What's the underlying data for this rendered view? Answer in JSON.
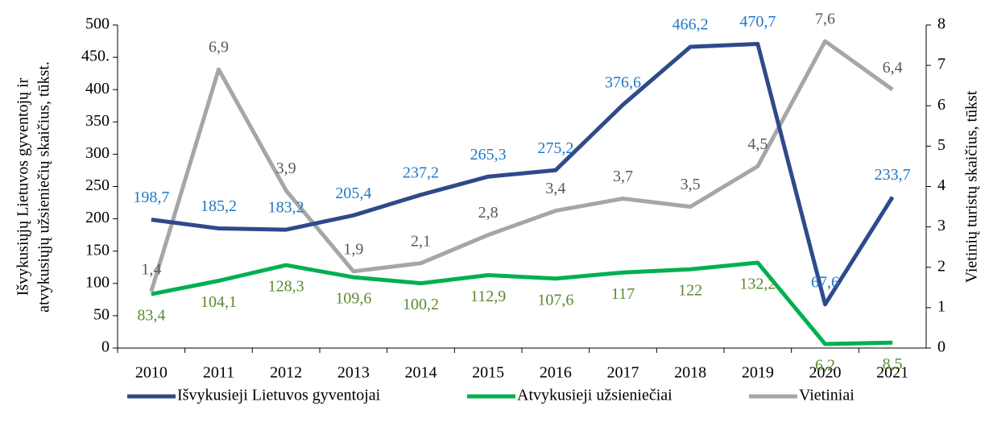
{
  "chart_data": {
    "type": "line",
    "categories": [
      "2010",
      "2011",
      "2012",
      "2013",
      "2014",
      "2015",
      "2016",
      "2017",
      "2018",
      "2019",
      "2020",
      "2021"
    ],
    "series": [
      {
        "name": "Išvykusieji Lietuvos gyventojai",
        "color": "#2e4a8b",
        "label_color": "#1f78c8",
        "values": [
          198.7,
          185.2,
          183.2,
          205.4,
          237.2,
          265.3,
          275.2,
          376.6,
          466.2,
          470.7,
          67.6,
          233.7
        ],
        "value_labels": [
          "198,7",
          "185,2",
          "183,2",
          "205,4",
          "237,2",
          "265,3",
          "275,2",
          "376,6",
          "466,2",
          "470,7",
          "67,6",
          "233,7"
        ]
      },
      {
        "name": "Atvykusieji užsieniečiai",
        "color": "#00b050",
        "label_color": "#5a8a2e",
        "values": [
          83.4,
          104.1,
          128.3,
          109.6,
          100.2,
          112.9,
          107.6,
          117,
          122,
          132.2,
          6.2,
          8.5
        ],
        "value_labels": [
          "83,4",
          "104,1",
          "128,3",
          "109,6",
          "100,2",
          "112,9",
          "107,6",
          "117",
          "122",
          "132,2",
          "6,2",
          "8,5"
        ]
      },
      {
        "name": "Vietiniai",
        "color": "#a6a6a6",
        "label_color": "#595959",
        "axis": "y2",
        "values": [
          1.4,
          6.9,
          3.9,
          1.9,
          2.1,
          2.8,
          3.4,
          3.7,
          3.5,
          4.5,
          7.6,
          6.4
        ],
        "value_labels": [
          "1,4",
          "6,9",
          "3,9",
          "1,9",
          "2,1",
          "2,8",
          "3,4",
          "3,7",
          "3,5",
          "4,5",
          "7,6",
          "6,4"
        ]
      }
    ],
    "ylabel": [
      "Išvykusiųjų Lietuvos gyventojų ir",
      "atvykusiųjų užsieniečių skaičius, tūkst."
    ],
    "y2label": "Vietinių turistų skaičius, tūkst",
    "ylim": [
      0,
      500
    ],
    "yticks": [
      0,
      50,
      100,
      150,
      200,
      250,
      300,
      350,
      400,
      {
        "value": 450,
        "label": "450."
      },
      500
    ],
    "y2lim": [
      0,
      8
    ],
    "y2ticks": [
      0,
      1,
      2,
      3,
      4,
      5,
      6,
      7,
      8
    ],
    "legend": "bottom"
  }
}
